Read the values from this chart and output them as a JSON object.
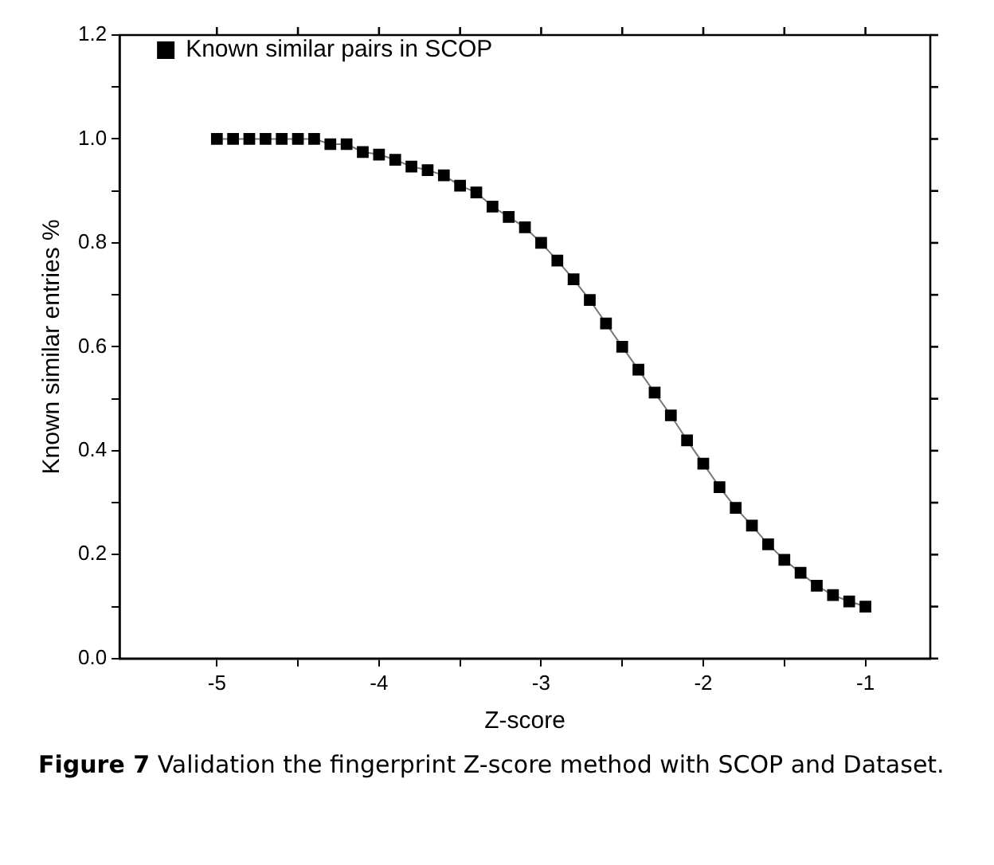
{
  "chart_data": {
    "type": "line",
    "xlabel": "Z-score",
    "ylabel": "Known similar entries %",
    "annotations": [
      "Figure 7 Validation the fingerprint Z-score method with SCOP and Dataset."
    ],
    "x": [
      -5,
      -4.9,
      -4.8,
      -4.7,
      -4.6,
      -4.5,
      -4.4,
      -4.3,
      -4.2,
      -4.1,
      -4,
      -3.9,
      -3.8,
      -3.7,
      -3.6,
      -3.5,
      -3.4,
      -3.3,
      -3.2,
      -3.1,
      -3,
      -2.9,
      -2.8,
      -2.7,
      -2.6,
      -2.5,
      -2.4,
      -2.3,
      -2.2,
      -2.1,
      -2,
      -1.9,
      -1.8,
      -1.7,
      -1.6,
      -1.5,
      -1.4,
      -1.3,
      -1.2,
      -1.1,
      -1
    ],
    "series": [
      {
        "name": "Known similar pairs in SCOP",
        "color": "#000000",
        "values": [
          1,
          1,
          1,
          1,
          1,
          1,
          1,
          0.99,
          0.99,
          0.975,
          0.97,
          0.96,
          0.947,
          0.94,
          0.93,
          0.91,
          0.897,
          0.87,
          0.85,
          0.83,
          0.8,
          0.766,
          0.73,
          0.69,
          0.645,
          0.6,
          0.556,
          0.512,
          0.468,
          0.42,
          0.375,
          0.33,
          0.29,
          0.256,
          0.22,
          0.19,
          0.165,
          0.14,
          0.122,
          0.11,
          0.1
        ]
      }
    ],
    "xlim": [
      -5.6,
      -0.6
    ],
    "xticks": [
      -5,
      {
        "value": -4.5,
        "label": null
      },
      -4,
      {
        "value": -3.5,
        "label": null
      },
      -3,
      {
        "value": -2.5,
        "label": null
      },
      -2,
      {
        "value": -1.5,
        "label": null
      },
      -1
    ],
    "ylim": [
      0,
      1.2
    ],
    "yticks": [
      {
        "value": 0,
        "label": "0.0"
      },
      {
        "value": 0.1,
        "label": null
      },
      {
        "value": 0.2,
        "label": "0.2"
      },
      {
        "value": 0.3,
        "label": null
      },
      {
        "value": 0.4,
        "label": "0.4"
      },
      {
        "value": 0.5,
        "label": null
      },
      {
        "value": 0.6,
        "label": "0.6"
      },
      {
        "value": 0.7,
        "label": null
      },
      {
        "value": 0.8,
        "label": "0.8"
      },
      {
        "value": 0.9,
        "label": null
      },
      {
        "value": 1,
        "label": "1.0"
      },
      {
        "value": 1.1,
        "label": null
      },
      {
        "value": 1.2,
        "label": "1.2"
      }
    ],
    "grid": false,
    "legend": "top left",
    "marker": "square",
    "line_style": "solid"
  }
}
